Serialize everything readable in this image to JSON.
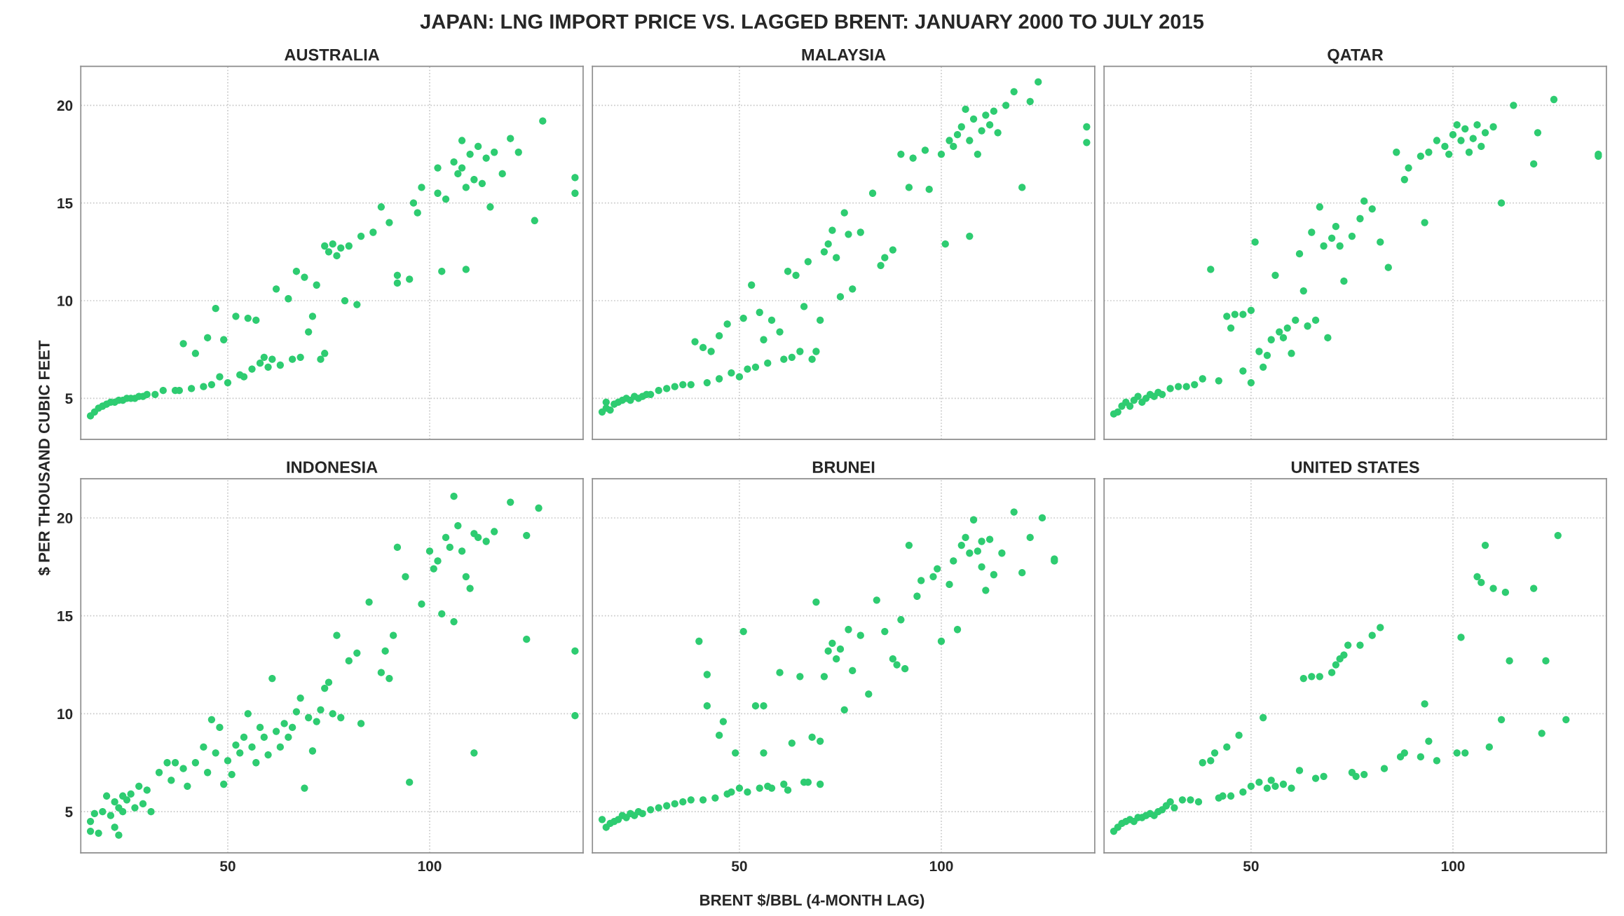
{
  "chart_data": [
    {
      "type": "scatter",
      "title": "AUSTRALIA",
      "annotations": [
        "JAPAN: LNG IMPORT PRICE VS. LAGGED BRENT: JANUARY 2000 TO JULY 2015"
      ],
      "ylabel": "$ PER THOUSAND CUBIC FEET",
      "color": "#2ecc71",
      "marker": "circle",
      "grid": true,
      "tick_labels": "y",
      "xlim": [
        13.6,
        138
      ],
      "ylim": [
        2.9,
        22
      ],
      "xticks": [
        50,
        100
      ],
      "yticks": [
        5,
        10,
        15,
        20
      ],
      "x": [
        16,
        17,
        18,
        19,
        20,
        21,
        22,
        23,
        24,
        25,
        26,
        27,
        28,
        29,
        30,
        32,
        34,
        37,
        38,
        39,
        41,
        42,
        44,
        45,
        46,
        47,
        48,
        49,
        50,
        52,
        53,
        54,
        55,
        56,
        57,
        58,
        59,
        60,
        61,
        62,
        63,
        65,
        66,
        67,
        68,
        69,
        70,
        71,
        72,
        73,
        74,
        74,
        75,
        76,
        77,
        78,
        79,
        80,
        82,
        83,
        86,
        88,
        90,
        92,
        92,
        95,
        96,
        97,
        98,
        102,
        102,
        103,
        104,
        106,
        107,
        108,
        108,
        109,
        109,
        110,
        111,
        112,
        113,
        114,
        115,
        116,
        118,
        120,
        122,
        126,
        128,
        136,
        136
      ],
      "values": [
        4.1,
        4.3,
        4.5,
        4.6,
        4.7,
        4.8,
        4.8,
        4.9,
        4.9,
        5.0,
        5.0,
        5.0,
        5.1,
        5.1,
        5.2,
        5.2,
        5.4,
        5.4,
        5.4,
        7.8,
        5.5,
        7.3,
        5.6,
        8.1,
        5.7,
        9.6,
        6.1,
        8.0,
        5.8,
        9.2,
        6.2,
        6.1,
        9.1,
        6.5,
        9.0,
        6.8,
        7.1,
        6.6,
        7.0,
        10.6,
        6.7,
        10.1,
        7.0,
        11.5,
        7.1,
        11.2,
        8.4,
        9.2,
        10.8,
        7.0,
        7.3,
        12.8,
        12.5,
        12.9,
        12.3,
        12.7,
        10.0,
        12.8,
        9.8,
        13.3,
        13.5,
        14.8,
        14.0,
        10.9,
        11.3,
        11.1,
        15.0,
        14.5,
        15.8,
        15.5,
        16.8,
        11.5,
        15.2,
        17.1,
        16.5,
        16.8,
        18.2,
        15.8,
        11.6,
        17.5,
        16.2,
        17.9,
        16.0,
        17.3,
        14.8,
        17.6,
        16.5,
        18.3,
        17.6,
        14.1,
        19.2,
        16.3,
        15.5
      ]
    },
    {
      "type": "scatter",
      "title": "MALAYSIA",
      "color": "#2ecc71",
      "marker": "circle",
      "grid": true,
      "tick_labels": false,
      "xlim": [
        13.6,
        138
      ],
      "ylim": [
        2.9,
        22
      ],
      "xticks": [
        50,
        100
      ],
      "yticks": [
        5,
        10,
        15,
        20
      ],
      "x": [
        16,
        17,
        17,
        18,
        19,
        20,
        21,
        22,
        23,
        24,
        25,
        26,
        27,
        28,
        30,
        32,
        34,
        36,
        38,
        39,
        41,
        42,
        43,
        45,
        45,
        47,
        48,
        50,
        51,
        52,
        53,
        54,
        55,
        56,
        57,
        58,
        60,
        61,
        62,
        63,
        64,
        65,
        66,
        67,
        68,
        69,
        70,
        71,
        72,
        73,
        74,
        75,
        76,
        77,
        78,
        80,
        83,
        85,
        86,
        88,
        90,
        92,
        93,
        96,
        97,
        100,
        101,
        102,
        103,
        104,
        105,
        106,
        107,
        108,
        109,
        110,
        111,
        113,
        114,
        116,
        118,
        120,
        122,
        124,
        136,
        136,
        107,
        112
      ],
      "values": [
        4.3,
        4.5,
        4.8,
        4.4,
        4.7,
        4.8,
        4.9,
        5.0,
        4.9,
        5.1,
        5.0,
        5.1,
        5.2,
        5.2,
        5.4,
        5.5,
        5.6,
        5.7,
        5.7,
        7.9,
        7.6,
        5.8,
        7.4,
        8.2,
        6.0,
        8.8,
        6.3,
        6.1,
        9.1,
        6.5,
        10.8,
        6.6,
        9.4,
        8.0,
        6.8,
        9.0,
        8.4,
        7.0,
        11.5,
        7.1,
        11.3,
        7.4,
        9.7,
        12.0,
        7.0,
        7.4,
        9.0,
        12.5,
        12.9,
        13.6,
        12.2,
        10.2,
        14.5,
        13.4,
        10.6,
        13.5,
        15.5,
        11.8,
        12.2,
        12.6,
        17.5,
        15.8,
        17.3,
        17.7,
        15.7,
        17.5,
        12.9,
        18.2,
        17.9,
        18.5,
        18.9,
        19.8,
        18.2,
        19.3,
        17.5,
        18.7,
        19.5,
        19.7,
        18.6,
        20.0,
        20.7,
        15.8,
        20.2,
        21.2,
        18.9,
        18.1,
        13.3,
        19.0
      ]
    },
    {
      "type": "scatter",
      "title": "QATAR",
      "color": "#2ecc71",
      "marker": "circle",
      "grid": true,
      "tick_labels": false,
      "xlim": [
        13.6,
        138
      ],
      "ylim": [
        2.9,
        22
      ],
      "xticks": [
        50,
        100
      ],
      "yticks": [
        5,
        10,
        15,
        20
      ],
      "x": [
        16,
        17,
        18,
        19,
        20,
        21,
        22,
        23,
        24,
        25,
        26,
        27,
        28,
        30,
        32,
        34,
        36,
        38,
        40,
        42,
        44,
        45,
        46,
        48,
        48,
        50,
        50,
        51,
        52,
        53,
        54,
        55,
        56,
        57,
        58,
        59,
        60,
        61,
        62,
        63,
        64,
        65,
        66,
        67,
        68,
        69,
        70,
        71,
        72,
        73,
        75,
        77,
        78,
        80,
        82,
        84,
        86,
        88,
        89,
        92,
        93,
        94,
        96,
        98,
        99,
        100,
        101,
        102,
        103,
        104,
        105,
        106,
        108,
        110,
        112,
        115,
        120,
        121,
        125,
        136,
        136,
        107
      ],
      "values": [
        4.2,
        4.3,
        4.6,
        4.8,
        4.6,
        4.9,
        5.1,
        4.8,
        5.0,
        5.2,
        5.1,
        5.3,
        5.2,
        5.5,
        5.6,
        5.6,
        5.7,
        6.0,
        11.6,
        5.9,
        9.2,
        8.6,
        9.3,
        6.4,
        9.3,
        9.5,
        5.8,
        13.0,
        7.4,
        6.6,
        7.2,
        8.0,
        11.3,
        8.4,
        8.1,
        8.6,
        7.3,
        9.0,
        12.4,
        10.5,
        8.7,
        13.5,
        9.0,
        14.8,
        12.8,
        8.1,
        13.2,
        13.8,
        12.8,
        11.0,
        13.3,
        14.2,
        15.1,
        14.7,
        13.0,
        11.7,
        17.6,
        16.2,
        16.8,
        17.4,
        14.0,
        17.6,
        18.2,
        17.9,
        17.5,
        18.5,
        19.0,
        18.2,
        18.8,
        17.6,
        18.3,
        19.0,
        18.6,
        18.9,
        15.0,
        20.0,
        17.0,
        18.6,
        20.3,
        17.4,
        17.5,
        17.9
      ]
    },
    {
      "type": "scatter",
      "title": "INDONESIA",
      "color": "#2ecc71",
      "marker": "circle",
      "grid": true,
      "xlim": [
        13.6,
        138
      ],
      "ylim": [
        2.9,
        22
      ],
      "xticks": [
        50,
        100
      ],
      "yticks": [
        5,
        10,
        15,
        20
      ],
      "x": [
        16,
        16,
        17,
        18,
        19,
        20,
        21,
        22,
        22,
        23,
        23,
        24,
        24,
        25,
        26,
        27,
        28,
        29,
        30,
        31,
        33,
        35,
        36,
        37,
        39,
        40,
        42,
        44,
        45,
        46,
        47,
        48,
        49,
        50,
        51,
        52,
        53,
        54,
        55,
        56,
        57,
        58,
        59,
        60,
        61,
        62,
        63,
        64,
        65,
        66,
        67,
        68,
        69,
        70,
        71,
        72,
        73,
        74,
        75,
        76,
        77,
        78,
        80,
        82,
        83,
        85,
        88,
        90,
        89,
        91,
        92,
        94,
        95,
        98,
        100,
        101,
        102,
        103,
        104,
        105,
        106,
        106,
        107,
        108,
        109,
        110,
        111,
        112,
        114,
        116,
        120,
        124,
        127,
        124,
        111,
        136,
        136
      ],
      "values": [
        4.5,
        4.0,
        4.9,
        3.9,
        5.0,
        5.8,
        4.8,
        5.5,
        4.2,
        5.2,
        3.8,
        5.0,
        5.8,
        5.6,
        5.9,
        5.2,
        6.3,
        5.4,
        6.1,
        5.0,
        7.0,
        7.5,
        6.6,
        7.5,
        7.2,
        6.3,
        7.5,
        8.3,
        7.0,
        9.7,
        8.0,
        9.3,
        6.4,
        7.6,
        6.9,
        8.4,
        8.0,
        8.8,
        10.0,
        8.3,
        7.5,
        9.3,
        8.8,
        7.9,
        11.8,
        9.1,
        8.3,
        9.5,
        8.8,
        9.3,
        10.1,
        10.8,
        6.2,
        9.8,
        8.1,
        9.6,
        10.2,
        11.3,
        11.6,
        10.0,
        14.0,
        9.8,
        12.7,
        13.1,
        9.5,
        15.7,
        12.1,
        11.8,
        13.2,
        14.0,
        18.5,
        17.0,
        6.5,
        15.6,
        18.3,
        17.4,
        17.8,
        15.1,
        19.0,
        18.5,
        21.1,
        14.7,
        19.6,
        18.3,
        17.0,
        16.4,
        19.2,
        19.0,
        18.8,
        19.3,
        20.8,
        19.1,
        20.5,
        13.8,
        8.0,
        13.2,
        9.9
      ]
    },
    {
      "type": "scatter",
      "title": "BRUNEI",
      "xlabel": "BRENT $/BBL (4-MONTH LAG)",
      "color": "#2ecc71",
      "marker": "circle",
      "grid": true,
      "tick_labels": "x",
      "xlim": [
        13.6,
        138
      ],
      "ylim": [
        2.9,
        22
      ],
      "xticks": [
        50,
        100
      ],
      "yticks": [
        5,
        10,
        15,
        20
      ],
      "x": [
        16,
        17,
        18,
        19,
        20,
        21,
        22,
        23,
        24,
        25,
        26,
        28,
        30,
        32,
        34,
        36,
        38,
        40,
        41,
        42,
        42,
        44,
        45,
        46,
        47,
        48,
        49,
        50,
        51,
        52,
        54,
        55,
        56,
        56,
        57,
        58,
        60,
        61,
        62,
        63,
        65,
        66,
        67,
        68,
        69,
        70,
        70,
        71,
        72,
        73,
        74,
        75,
        76,
        77,
        78,
        80,
        82,
        84,
        86,
        88,
        89,
        90,
        91,
        92,
        94,
        95,
        98,
        99,
        100,
        102,
        103,
        104,
        105,
        106,
        107,
        108,
        109,
        110,
        111,
        112,
        113,
        115,
        118,
        120,
        122,
        125,
        128,
        128,
        110
      ],
      "values": [
        4.6,
        4.2,
        4.4,
        4.5,
        4.6,
        4.8,
        4.7,
        4.9,
        4.8,
        5.0,
        4.9,
        5.1,
        5.2,
        5.3,
        5.4,
        5.5,
        5.6,
        13.7,
        5.6,
        12.0,
        10.4,
        5.7,
        8.9,
        9.6,
        5.9,
        6.0,
        8.0,
        6.2,
        14.2,
        6.0,
        10.4,
        6.2,
        10.4,
        8.0,
        6.3,
        6.2,
        12.1,
        6.4,
        6.1,
        8.5,
        11.9,
        6.5,
        6.5,
        8.8,
        15.7,
        8.6,
        6.4,
        11.9,
        13.2,
        13.6,
        12.8,
        13.3,
        10.2,
        14.3,
        12.2,
        14.0,
        11.0,
        15.8,
        14.2,
        12.8,
        12.5,
        14.8,
        12.3,
        18.6,
        16.0,
        16.8,
        17.0,
        17.4,
        13.7,
        16.6,
        17.8,
        14.3,
        18.6,
        19.0,
        18.2,
        19.9,
        18.3,
        17.5,
        16.3,
        18.9,
        17.1,
        18.2,
        20.3,
        17.2,
        19.0,
        20.0,
        17.9,
        17.8,
        18.8
      ]
    },
    {
      "type": "scatter",
      "title": "UNITED STATES",
      "color": "#2ecc71",
      "marker": "circle",
      "grid": true,
      "tick_labels": "x",
      "xlim": [
        13.6,
        138
      ],
      "ylim": [
        2.9,
        22
      ],
      "xticks": [
        50,
        100
      ],
      "yticks": [
        5,
        10,
        15,
        20
      ],
      "x": [
        16,
        17,
        18,
        19,
        20,
        21,
        22,
        23,
        24,
        25,
        26,
        27,
        28,
        29,
        30,
        31,
        33,
        35,
        37,
        38,
        40,
        41,
        42,
        43,
        44,
        45,
        47,
        48,
        50,
        52,
        53,
        54,
        55,
        56,
        58,
        60,
        62,
        63,
        65,
        66,
        67,
        68,
        70,
        71,
        72,
        73,
        74,
        75,
        76,
        77,
        78,
        80,
        82,
        83,
        87,
        88,
        92,
        93,
        94,
        96,
        102,
        103,
        106,
        107,
        108,
        109,
        110,
        112,
        113,
        114,
        120,
        122,
        123,
        126,
        128,
        101
      ],
      "values": [
        4.0,
        4.2,
        4.4,
        4.5,
        4.6,
        4.5,
        4.7,
        4.7,
        4.8,
        4.9,
        4.8,
        5.0,
        5.1,
        5.3,
        5.5,
        5.2,
        5.6,
        5.6,
        5.5,
        7.5,
        7.6,
        8.0,
        5.7,
        5.8,
        8.3,
        5.8,
        8.9,
        6.0,
        6.3,
        6.5,
        9.8,
        6.2,
        6.6,
        6.3,
        6.4,
        6.2,
        7.1,
        11.8,
        11.9,
        6.7,
        11.9,
        6.8,
        12.1,
        12.5,
        12.8,
        13.0,
        13.5,
        7.0,
        6.8,
        13.5,
        6.9,
        14.0,
        14.4,
        7.2,
        7.8,
        8.0,
        7.8,
        10.5,
        8.6,
        7.6,
        13.9,
        8.0,
        17.0,
        16.7,
        18.6,
        8.3,
        16.4,
        9.7,
        16.2,
        12.7,
        16.4,
        9.0,
        12.7,
        19.1,
        9.7,
        8.0
      ]
    }
  ]
}
